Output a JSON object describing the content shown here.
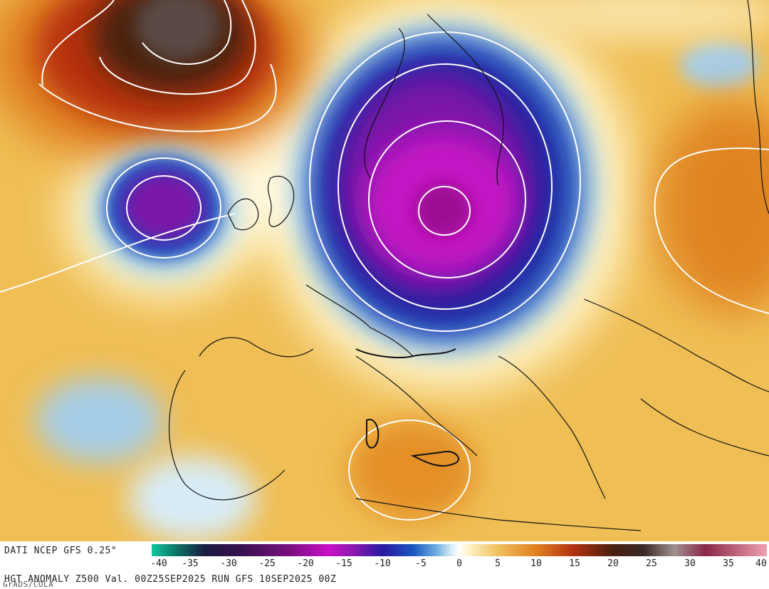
{
  "map": {
    "colors": {
      "sea_background": "#f0c060",
      "strong_negative": "#c41ccc",
      "deep_blue": "#1a2fa8",
      "light_blue": "#b8d8ef",
      "positive_orange": "#e49828",
      "strong_positive": "#5a3a33",
      "contour": "#ffffff",
      "coastline": "#111111"
    }
  },
  "footer": {
    "source_label": "DATI NCEP GFS 0.25°",
    "caption": "HGT ANOMALY Z500 Val. 00Z25SEP2025 RUN GFS 10SEP2025 00Z",
    "credit": "GrADS/COLA"
  },
  "colorbar": {
    "tick_labels": [
      "-40",
      "-35",
      "-30",
      "-25",
      "-20",
      "-15",
      "-10",
      "-5",
      "0",
      "5",
      "10",
      "15",
      "20",
      "25",
      "30",
      "35",
      "40"
    ],
    "tick_values": [
      -40,
      -35,
      -30,
      -25,
      -20,
      -15,
      -10,
      -5,
      0,
      5,
      10,
      15,
      20,
      25,
      30,
      35,
      40
    ],
    "range": [
      -40,
      40
    ],
    "stops": [
      {
        "v": -40,
        "c": "#10c8a0"
      },
      {
        "v": -37,
        "c": "#0e7a6a"
      },
      {
        "v": -33,
        "c": "#1a1a40"
      },
      {
        "v": -28,
        "c": "#3a1050"
      },
      {
        "v": -22,
        "c": "#7a1080"
      },
      {
        "v": -17,
        "c": "#c810c8"
      },
      {
        "v": -14,
        "c": "#9018b0"
      },
      {
        "v": -10,
        "c": "#2a1aa0"
      },
      {
        "v": -6,
        "c": "#1a56c0"
      },
      {
        "v": -3,
        "c": "#6eaee0"
      },
      {
        "v": -1,
        "c": "#d8ecf8"
      },
      {
        "v": 0,
        "c": "#ffffff"
      },
      {
        "v": 1,
        "c": "#fff6d0"
      },
      {
        "v": 5,
        "c": "#f0c060"
      },
      {
        "v": 10,
        "c": "#e08020"
      },
      {
        "v": 15,
        "c": "#b03010"
      },
      {
        "v": 20,
        "c": "#4a2010"
      },
      {
        "v": 24,
        "c": "#3a2a25"
      },
      {
        "v": 28,
        "c": "#a09090"
      },
      {
        "v": 32,
        "c": "#8a2848"
      },
      {
        "v": 40,
        "c": "#f0a0b0"
      }
    ]
  }
}
